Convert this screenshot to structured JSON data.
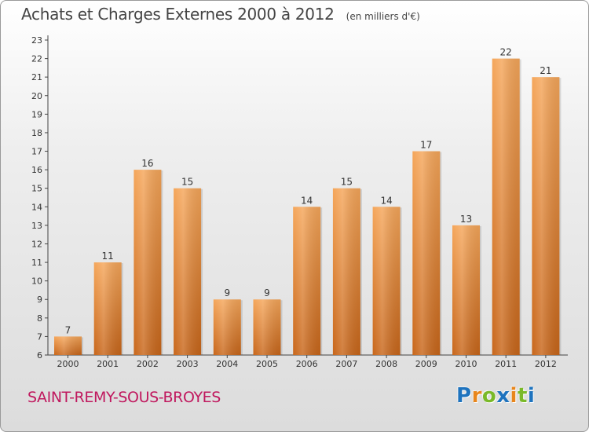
{
  "header": {
    "title": "Achats et Charges Externes 2000 à 2012",
    "unit": "(en milliers d'€)"
  },
  "footer": {
    "commune": "SAINT-REMY-SOUS-BROYES",
    "logo_text": "Proxiti"
  },
  "colors": {
    "bar_top": "#f5a65a",
    "bar_bottom": "#c8661a",
    "axis": "#444444",
    "commune_text": "#c0185e",
    "logo": [
      "#1e73be",
      "#e8861c",
      "#7ab929",
      "#1e73be",
      "#e8861c",
      "#7ab929",
      "#1e73be"
    ]
  },
  "chart_data": {
    "type": "bar",
    "categories": [
      "2000",
      "2001",
      "2002",
      "2003",
      "2004",
      "2005",
      "2006",
      "2007",
      "2008",
      "2009",
      "2010",
      "2011",
      "2012"
    ],
    "values": [
      7,
      11,
      16,
      15,
      9,
      9,
      14,
      15,
      14,
      17,
      13,
      22,
      21
    ],
    "data_labels": [
      "7",
      "11",
      "16",
      "15",
      "9",
      "9",
      "14",
      "15",
      "14",
      "17",
      "13",
      "22",
      "21"
    ],
    "title": "Achats et Charges Externes 2000 à 2012",
    "subtitle": "(en milliers d'€)",
    "xlabel": "",
    "ylabel": "",
    "ylim": [
      6,
      23
    ],
    "yticks": [
      "6",
      "7",
      "8",
      "9",
      "10",
      "11",
      "12",
      "13",
      "14",
      "15",
      "16",
      "17",
      "18",
      "19",
      "20",
      "21",
      "22",
      "23"
    ],
    "grid": false,
    "legend": "none"
  }
}
